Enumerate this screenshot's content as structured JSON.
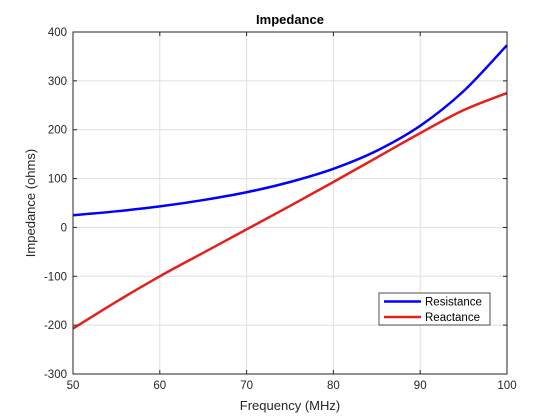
{
  "chart_data": {
    "type": "line",
    "title": "Impedance",
    "xlabel": "Frequency (MHz)",
    "ylabel": "Impedance (ohms)",
    "xlim": [
      50,
      100
    ],
    "ylim": [
      -300,
      400
    ],
    "xticks": [
      50,
      60,
      70,
      80,
      90,
      100
    ],
    "yticks": [
      -300,
      -200,
      -100,
      0,
      100,
      200,
      300,
      400
    ],
    "xtick_labels": [
      "50",
      "60",
      "70",
      "80",
      "90",
      "100"
    ],
    "ytick_labels": [
      "-300",
      "-200",
      "-100",
      "0",
      "100",
      "200",
      "300",
      "400"
    ],
    "grid": true,
    "legend_location": "bottom-right",
    "x": [
      50,
      55,
      60,
      65,
      70,
      75,
      80,
      85,
      90,
      95,
      100
    ],
    "series": [
      {
        "name": "Resistance",
        "color": "#0000ff",
        "values": [
          25,
          33,
          43,
          56,
          72,
          93,
          120,
          157,
          208,
          279,
          373
        ]
      },
      {
        "name": "Reactance",
        "color": "#e3211c",
        "values": [
          -207,
          -152,
          -100,
          -52,
          -4,
          44,
          93,
          143,
          193,
          240,
          275
        ]
      }
    ]
  }
}
